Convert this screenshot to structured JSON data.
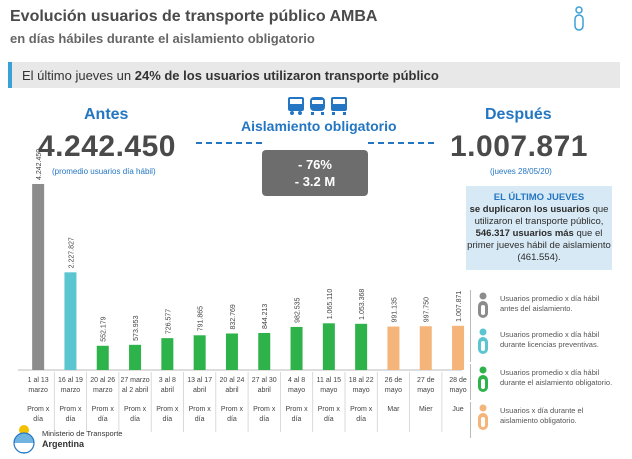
{
  "header": {
    "title": "Evolución usuarios de transporte público AMBA",
    "subtitle": "en días hábiles durante el aislamiento obligatorio"
  },
  "banner": {
    "text_pre": "El último jueves un ",
    "text_bold": "24% de los usuarios utilizaron transporte público"
  },
  "antes": {
    "label": "Antes",
    "value": "4.242.450",
    "note": "(promedio usuarios día hábil)"
  },
  "despues": {
    "label": "Después",
    "value": "1.007.871",
    "note": "(jueves 28/05/20)"
  },
  "aislamiento": {
    "label": "Aislamiento obligatorio",
    "drop_pct": "- 76%",
    "drop_abs": "- 3.2 M"
  },
  "info_box": {
    "title": "EL ÚLTIMO JUEVES",
    "line1_bold": "se duplicaron los usuarios",
    "line1_rest": " que utilizaron el transporte público, ",
    "line2_bold": "546.317 usuarios más",
    "line2_rest": " que el primer jueves hábil de aislamiento (461.554)."
  },
  "legend": [
    {
      "text": "Usuarios promedio x día hábil antes del aislamiento.",
      "color": "#8c8c8c"
    },
    {
      "text": "Usuarios promedio x día hábil durante licencias preventivas.",
      "color": "#5bc5d0"
    },
    {
      "text": "Usuarios promedio x día hábil durante el aislamiento obligatorio.",
      "color": "#2eb24a"
    },
    {
      "text": "Usuarios x día durante el aislamiento obligatorio.",
      "color": "#f4b47a"
    }
  ],
  "footer": {
    "org": "Ministerio de Transporte",
    "country": "Argentina"
  },
  "chart_data": {
    "type": "bar",
    "title": "Evolución usuarios de transporte público AMBA",
    "categories": [
      "1 al 13 marzo",
      "16 al 19 marzo",
      "20 al 26 marzo",
      "27 marzo al 2 abril",
      "3 al 8 abril",
      "13 al 17 abril",
      "20 al 24 abril",
      "27 al 30 abril",
      "4 al 8 mayo",
      "11 al 15 mayo",
      "18 al 22 mayo",
      "26 de mayo",
      "27 de mayo",
      "28 de mayo"
    ],
    "category_lines": [
      [
        "1 al 13",
        "marzo"
      ],
      [
        "16 al 19",
        "marzo"
      ],
      [
        "20 al 26",
        "marzo"
      ],
      [
        "27 marzo",
        "al 2 abril"
      ],
      [
        "3 al 8",
        "abril"
      ],
      [
        "13 al 17",
        "abril"
      ],
      [
        "20 al 24",
        "abril"
      ],
      [
        "27 al 30",
        "abril"
      ],
      [
        "4 al 8",
        "mayo"
      ],
      [
        "11 al 15",
        "mayo"
      ],
      [
        "18 al 22",
        "mayo"
      ],
      [
        "26 de",
        "mayo"
      ],
      [
        "27 de",
        "mayo"
      ],
      [
        "28 de",
        "mayo"
      ]
    ],
    "sublabels": [
      [
        "Prom x",
        "día"
      ],
      [
        "Prom x",
        "día"
      ],
      [
        "Prom x",
        "día"
      ],
      [
        "Prom x",
        "día"
      ],
      [
        "Prom x",
        "día"
      ],
      [
        "Prom x",
        "día"
      ],
      [
        "Prom x",
        "día"
      ],
      [
        "Prom x",
        "día"
      ],
      [
        "Prom x",
        "día"
      ],
      [
        "Prom x",
        "día"
      ],
      [
        "Prom x",
        "día"
      ],
      [
        "Mar"
      ],
      [
        "Mier"
      ],
      [
        "Jue"
      ]
    ],
    "values": [
      4242450,
      2227827,
      552179,
      573953,
      726577,
      791865,
      832769,
      844213,
      982535,
      1065110,
      1053368,
      991135,
      997750,
      1007871
    ],
    "value_labels": [
      "4.242.450",
      "2.227.827",
      "552.179",
      "573.953",
      "726.577",
      "791.865",
      "832.769",
      "844.213",
      "982.535",
      "1.065.110",
      "1.053.368",
      "991.135",
      "997.750",
      "1.007.871"
    ],
    "groups": [
      "antes",
      "licencias",
      "aislamiento",
      "aislamiento",
      "aislamiento",
      "aislamiento",
      "aislamiento",
      "aislamiento",
      "aislamiento",
      "aislamiento",
      "aislamiento",
      "diario",
      "diario",
      "diario"
    ],
    "group_colors": {
      "antes": "#8c8c8c",
      "licencias": "#5bc5d0",
      "aislamiento": "#2eb24a",
      "diario": "#f4b47a"
    },
    "ylim": [
      0,
      4242450
    ]
  }
}
